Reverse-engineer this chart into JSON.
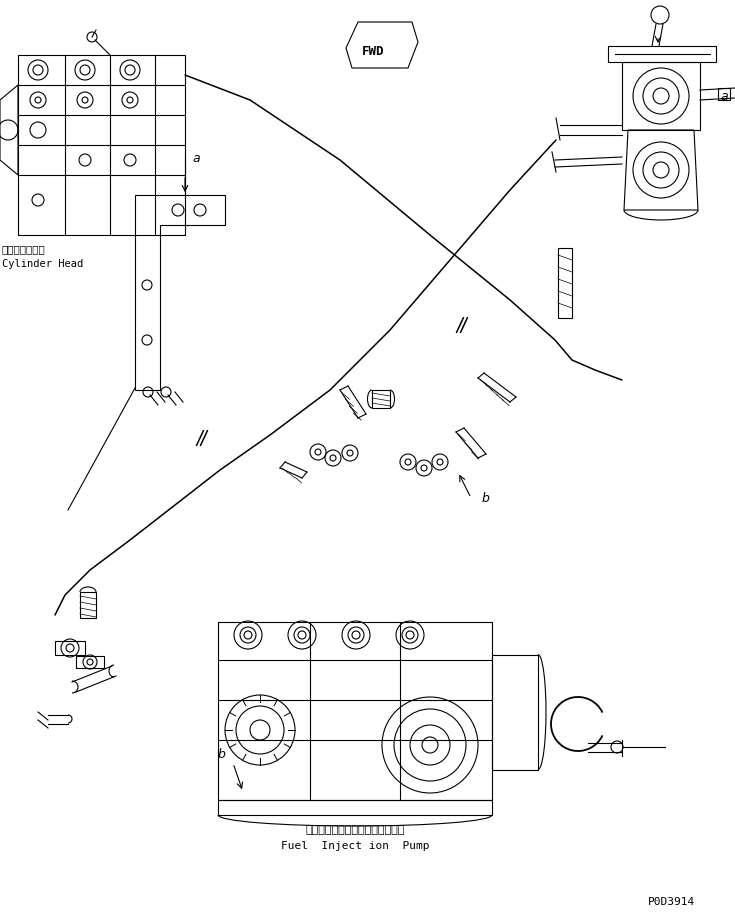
{
  "bg_color": "#ffffff",
  "line_color": "#000000",
  "fig_width": 7.35,
  "fig_height": 9.18,
  "dpi": 100,
  "label_cylinder_head_jp": "シリンダヘッド",
  "label_cylinder_head_en": "Cylinder Head",
  "label_fuel_pump_jp": "フェエルインジェクションポンプ",
  "label_fuel_pump_en": "Fuel  Inject ion  Pump",
  "label_fwd": "FWD",
  "label_a": "a",
  "label_b": "b",
  "label_code": "P0D3914",
  "font_size_small": 7,
  "font_size_medium": 8,
  "font_size_large": 9,
  "font_family": "monospace"
}
